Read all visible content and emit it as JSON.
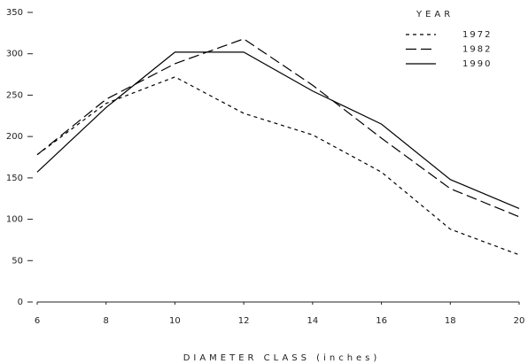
{
  "chart_data": {
    "type": "line",
    "x_label": "DIAMETER CLASS (inches)",
    "legend_title": "YEAR",
    "x": [
      6,
      8,
      10,
      12,
      14,
      16,
      18,
      20
    ],
    "series": [
      {
        "name": "1972",
        "color": "#000000",
        "linestyle": "short-dash",
        "values": [
          178,
          240,
          272,
          228,
          202,
          157,
          88,
          57
        ]
      },
      {
        "name": "1982",
        "color": "#000000",
        "linestyle": "long-dash",
        "values": [
          178,
          245,
          288,
          318,
          262,
          198,
          137,
          103
        ]
      },
      {
        "name": "1990",
        "color": "#000000",
        "linestyle": "solid",
        "values": [
          157,
          235,
          302,
          302,
          255,
          215,
          148,
          113
        ]
      }
    ],
    "xlim": [
      6,
      20
    ],
    "xticks": [
      6,
      8,
      10,
      12,
      14,
      16,
      18,
      20
    ],
    "ylim": [
      0,
      350
    ],
    "yticks": [
      0,
      50,
      100,
      150,
      200,
      250,
      300,
      350
    ],
    "legend": "upper-right",
    "grid": false
  }
}
